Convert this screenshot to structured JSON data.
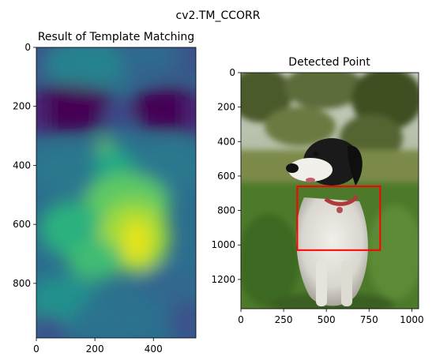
{
  "suptitle": "cv2.TM_CCORR",
  "chart_data": [
    {
      "type": "heatmap",
      "title": "Result of Template Matching",
      "colormap": "viridis",
      "xlim": [
        0,
        545
      ],
      "ylim": [
        985,
        0
      ],
      "xticks": [
        0,
        200,
        400
      ],
      "yticks": [
        0,
        200,
        400,
        600,
        800
      ],
      "xlabel": "",
      "ylabel": "",
      "peak": {
        "x": 330,
        "y": 660
      },
      "secondary_peak": {
        "x": 230,
        "y": 345
      },
      "dark_bands_y": [
        210,
        215
      ]
    },
    {
      "type": "image",
      "title": "Detected Point",
      "content": "photo of a black-and-white dog sitting in tall green grass with trees behind",
      "xlim": [
        0,
        1040
      ],
      "ylim": [
        1370,
        0
      ],
      "xticks": [
        0,
        250,
        500,
        750,
        1000
      ],
      "yticks": [
        0,
        200,
        400,
        600,
        800,
        1000,
        1200
      ],
      "detection_rect": {
        "x0": 330,
        "y0": 660,
        "x1": 815,
        "y1": 1030
      },
      "rect_color": "#ff0000"
    }
  ]
}
